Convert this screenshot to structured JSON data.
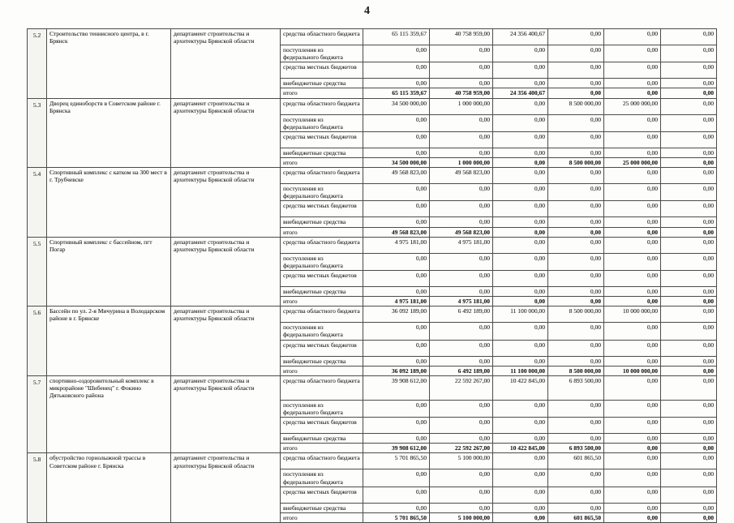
{
  "page": {
    "number": "4"
  },
  "table": {
    "funding_row_labels": [
      "средства областного бюджета",
      "поступления из федерального бюджета",
      "средства местных бюджетов",
      "внебюджетные средства",
      "итого"
    ],
    "rows": [
      {
        "num": "5.2",
        "name": "Строительство теннисного центра, в г. Брянск",
        "department": "департамент строительства и архитектуры Брянской области",
        "funding": [
          [
            "65 115 359,67",
            "40 758 959,00",
            "24 356 400,67",
            "0,00",
            "0,00",
            "0,00"
          ],
          [
            "0,00",
            "0,00",
            "0,00",
            "0,00",
            "0,00",
            "0,00"
          ],
          [
            "0,00",
            "0,00",
            "0,00",
            "0,00",
            "0,00",
            "0,00"
          ],
          [
            "0,00",
            "0,00",
            "0,00",
            "0,00",
            "0,00",
            "0,00"
          ],
          [
            "65 115 359,67",
            "40 758 959,00",
            "24 356 400,67",
            "0,00",
            "0,00",
            "0,00"
          ]
        ]
      },
      {
        "num": "5.3",
        "name": "Дворец единоборств в Советском районе г. Брянска",
        "department": "департамент строительства и архитектуры Брянской области",
        "funding": [
          [
            "34 500 000,00",
            "1 000 000,00",
            "0,00",
            "8 500 000,00",
            "25 000 000,00",
            "0,00"
          ],
          [
            "0,00",
            "0,00",
            "0,00",
            "0,00",
            "0,00",
            "0,00"
          ],
          [
            "0,00",
            "0,00",
            "0,00",
            "0,00",
            "0,00",
            "0,00"
          ],
          [
            "0,00",
            "0,00",
            "0,00",
            "0,00",
            "0,00",
            "0,00"
          ],
          [
            "34 500 000,00",
            "1 000 000,00",
            "0,00",
            "8 500 000,00",
            "25 000 000,00",
            "0,00"
          ]
        ]
      },
      {
        "num": "5.4",
        "name": "Спортивный комплекс с катком на 300 мест в г. Трубчевске",
        "department": "департамент строительства и архитектуры Брянской области",
        "funding": [
          [
            "49 568 823,00",
            "49 568 823,00",
            "0,00",
            "0,00",
            "0,00",
            "0,00"
          ],
          [
            "0,00",
            "0,00",
            "0,00",
            "0,00",
            "0,00",
            "0,00"
          ],
          [
            "0,00",
            "0,00",
            "0,00",
            "0,00",
            "0,00",
            "0,00"
          ],
          [
            "0,00",
            "0,00",
            "0,00",
            "0,00",
            "0,00",
            "0,00"
          ],
          [
            "49 568 823,00",
            "49 568 823,00",
            "0,00",
            "0,00",
            "0,00",
            "0,00"
          ]
        ]
      },
      {
        "num": "5.5",
        "name": "Спортивный комплекс с бассейном, пгт Погар",
        "department": "департамент строительства и архитектуры Брянской области",
        "funding": [
          [
            "4 975 181,00",
            "4 975 181,00",
            "0,00",
            "0,00",
            "0,00",
            "0,00"
          ],
          [
            "0,00",
            "0,00",
            "0,00",
            "0,00",
            "0,00",
            "0,00"
          ],
          [
            "0,00",
            "0,00",
            "0,00",
            "0,00",
            "0,00",
            "0,00"
          ],
          [
            "0,00",
            "0,00",
            "0,00",
            "0,00",
            "0,00",
            "0,00"
          ],
          [
            "4 975 181,00",
            "4 975 181,00",
            "0,00",
            "0,00",
            "0,00",
            "0,00"
          ]
        ]
      },
      {
        "num": "5.6",
        "name": "Бассейн по ул. 2-я Мичурина в Володарском районе в г. Брянске",
        "department": "департамент строительства и архитектуры Брянской области",
        "funding": [
          [
            "36 092 189,00",
            "6 492 189,00",
            "11 100 000,00",
            "8 500 000,00",
            "10 000 000,00",
            "0,00"
          ],
          [
            "0,00",
            "0,00",
            "0,00",
            "0,00",
            "0,00",
            "0,00"
          ],
          [
            "0,00",
            "0,00",
            "0,00",
            "0,00",
            "0,00",
            "0,00"
          ],
          [
            "0,00",
            "0,00",
            "0,00",
            "0,00",
            "0,00",
            "0,00"
          ],
          [
            "36 092 189,00",
            "6 492 189,00",
            "11 100 000,00",
            "8 500 000,00",
            "10 000 000,00",
            "0,00"
          ]
        ]
      },
      {
        "num": "5.7",
        "name": "спортивно-оздоровительный комплекс в микрорайоне \"Шибенец\" г. Фокино Дятьковского района",
        "department": "департамент строительства и архитектуры Брянской области",
        "funding": [
          [
            "39 908 612,00",
            "22 592 267,00",
            "10 422 845,00",
            "6 893 500,00",
            "0,00",
            "0,00"
          ],
          [
            "0,00",
            "0,00",
            "0,00",
            "0,00",
            "0,00",
            "0,00"
          ],
          [
            "0,00",
            "0,00",
            "0,00",
            "0,00",
            "0,00",
            "0,00"
          ],
          [
            "0,00",
            "0,00",
            "0,00",
            "0,00",
            "0,00",
            "0,00"
          ],
          [
            "39 908 612,00",
            "22 592 267,00",
            "10 422 845,00",
            "6 893 500,00",
            "0,00",
            "0,00"
          ]
        ]
      },
      {
        "num": "5.8",
        "name": "обустройство горнолыжной трассы в Советском районе г. Брянска",
        "department": "департамент строительства и архитектуры Брянской области",
        "funding": [
          [
            "5 701 865,50",
            "5 100 000,00",
            "0,00",
            "601 865,50",
            "0,00",
            "0,00"
          ],
          [
            "0,00",
            "0,00",
            "0,00",
            "0,00",
            "0,00",
            "0,00"
          ],
          [
            "0,00",
            "0,00",
            "0,00",
            "0,00",
            "0,00",
            "0,00"
          ],
          [
            "0,00",
            "0,00",
            "0,00",
            "0,00",
            "0,00",
            "0,00"
          ],
          [
            "5 701 865,50",
            "5 100 000,00",
            "0,00",
            "601 865,50",
            "0,00",
            "0,00"
          ]
        ]
      }
    ]
  }
}
